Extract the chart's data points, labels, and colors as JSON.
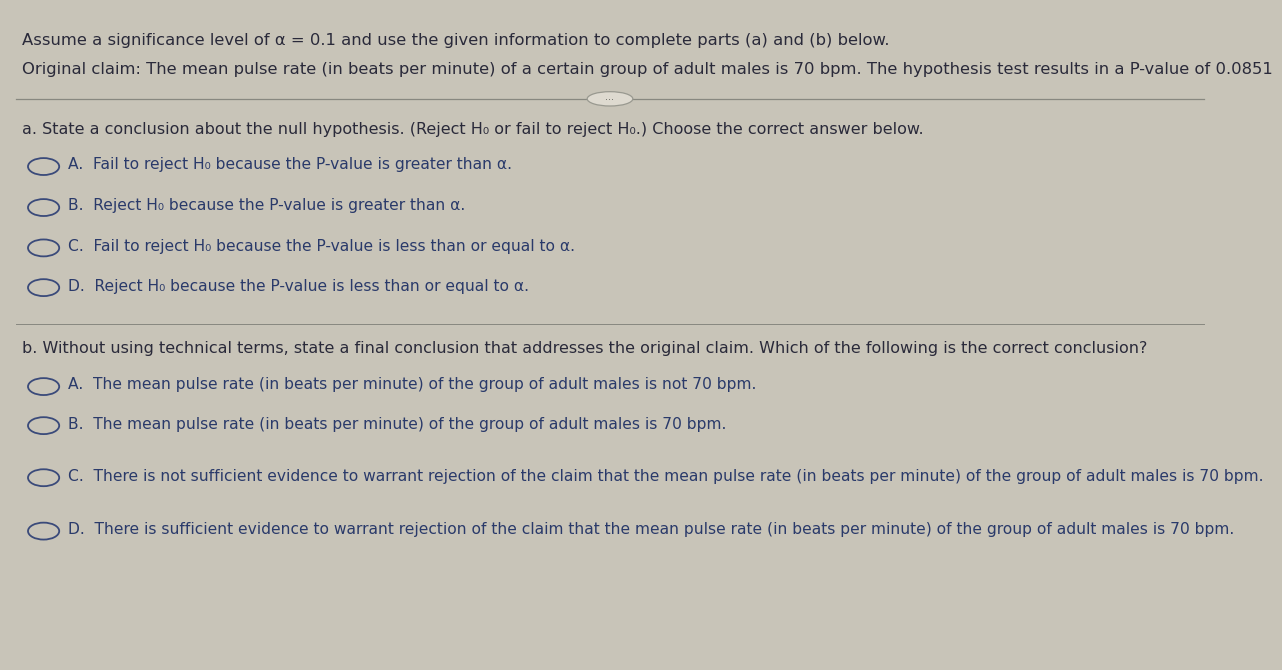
{
  "bg_color": "#c8c4b8",
  "content_bg": "#dedad0",
  "text_color": "#2a2a3a",
  "blue_text": "#2a3a6a",
  "circle_color": "#3a4a7a",
  "title_line1": "Assume a significance level of α = 0.1 and use the given information to complete parts (a) and (b) below.",
  "title_line2": "Original claim: The mean pulse rate (in beats per minute) of a certain group of adult males is 70 bpm. The hypothesis test results in a P-value of 0.0851",
  "section_a_header": "a. State a conclusion about the null hypothesis. (Reject H₀ or fail to reject H₀.) Choose the correct answer below.",
  "options_a": [
    "A.  Fail to reject H₀ because the P-value is greater than α.",
    "B.  Reject H₀ because the P-value is greater than α.",
    "C.  Fail to reject H₀ because the P-value is less than or equal to α.",
    "D.  Reject H₀ because the P-value is less than or equal to α."
  ],
  "section_b_header": "b. Without using technical terms, state a final conclusion that addresses the original claim. Which of the following is the correct conclusion?",
  "options_b": [
    "A.  The mean pulse rate (in beats per minute) of the group of adult males is not 70 bpm.",
    "B.  The mean pulse rate (in beats per minute) of the group of adult males is 70 bpm.",
    "C.  There is not sufficient evidence to warrant rejection of the claim that the mean pulse rate (in beats per minute) of the group of adult males is 70 bpm.",
    "D.  There is sufficient evidence to warrant rejection of the claim that the mean pulse rate (in beats per minute) of the group of adult males is 70 bpm."
  ],
  "sep_line_color": "#888880",
  "font_size_title": 11.8,
  "font_size_section": 11.5,
  "font_size_option": 11.2
}
